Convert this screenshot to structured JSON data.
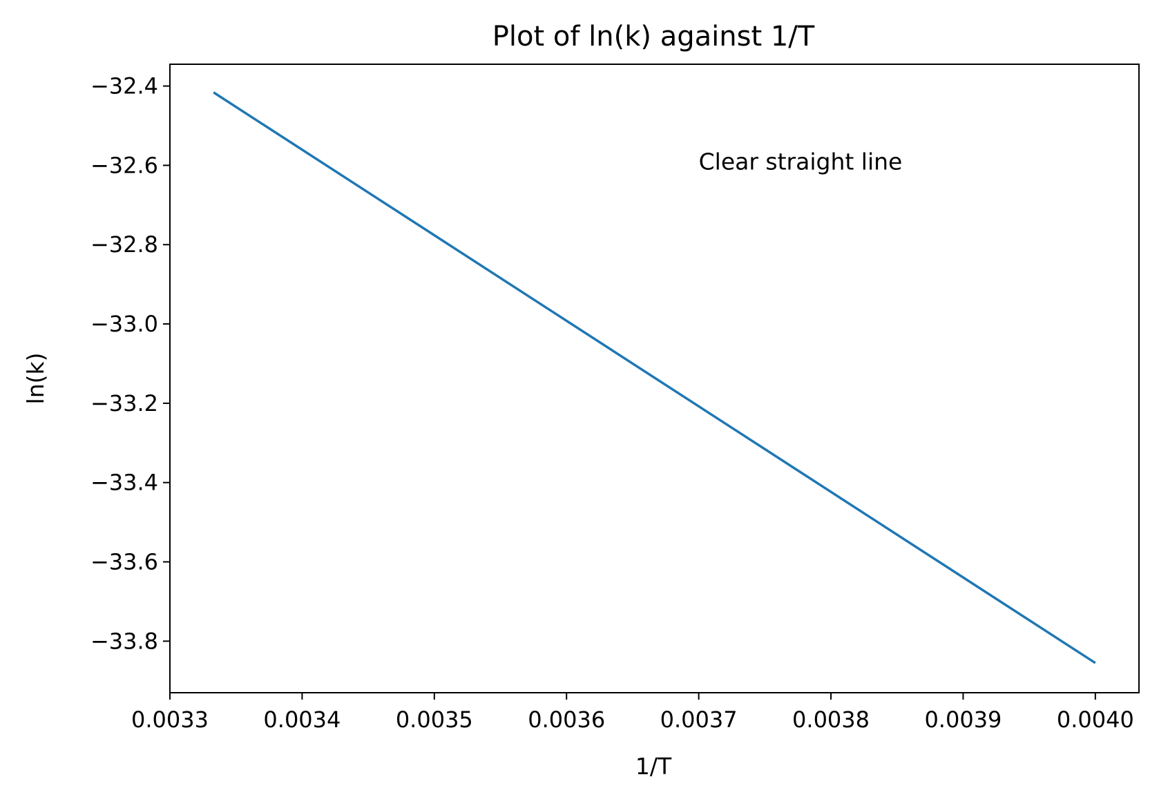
{
  "chart_data": {
    "type": "line",
    "title": "Plot of ln(k) against 1/T",
    "xlabel": "1/T",
    "ylabel": "ln(k)",
    "xlim": [
      0.0033,
      0.004033
    ],
    "ylim": [
      -33.93,
      -32.345
    ],
    "xticks": [
      0.0033,
      0.0034,
      0.0035,
      0.0036,
      0.0037,
      0.0038,
      0.0039,
      0.004
    ],
    "xtick_labels": [
      "0.0033",
      "0.0034",
      "0.0035",
      "0.0036",
      "0.0037",
      "0.0038",
      "0.0039",
      "0.0040"
    ],
    "yticks": [
      -32.4,
      -32.6,
      -32.8,
      -33.0,
      -33.2,
      -33.4,
      -33.6,
      -33.8
    ],
    "ytick_labels": [
      "−32.4",
      "−32.6",
      "−32.8",
      "−33.0",
      "−33.2",
      "−33.4",
      "−33.6",
      "−33.8"
    ],
    "grid": false,
    "series": [
      {
        "color": "#1f77b4",
        "x": [
          0.003333,
          0.004
        ],
        "y": [
          -32.416,
          -33.855
        ]
      }
    ],
    "annotations": [
      {
        "text": "Clear straight line",
        "x": 0.0037,
        "y": -32.59
      }
    ]
  }
}
